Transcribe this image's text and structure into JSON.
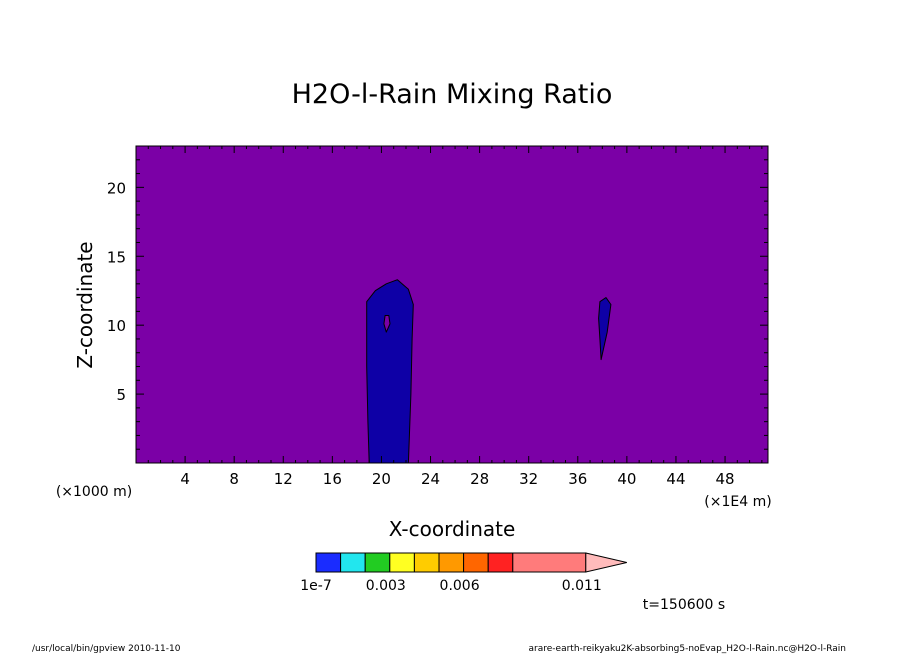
{
  "chart_data": {
    "type": "heatmap",
    "title": "H2O-l-Rain Mixing Ratio",
    "xlabel": "X-coordinate",
    "ylabel": "Z-coordinate",
    "x_unit": "(×1E4 m)",
    "y_unit": "(×1000 m)",
    "xlim": [
      0,
      51.5
    ],
    "ylim": [
      0,
      23
    ],
    "x_ticks": [
      4,
      8,
      12,
      16,
      20,
      24,
      28,
      32,
      36,
      40,
      44,
      48
    ],
    "y_ticks": [
      5,
      10,
      15,
      20
    ],
    "background_level_color": "#7b00a6",
    "regions": [
      {
        "name": "plume-1",
        "color": "#0e00a6",
        "outline": [
          [
            19.0,
            0
          ],
          [
            22.2,
            0
          ],
          [
            22.4,
            5
          ],
          [
            22.5,
            9
          ],
          [
            22.6,
            11.5
          ],
          [
            22.2,
            12.6
          ],
          [
            21.3,
            13.3
          ],
          [
            20.4,
            13.0
          ],
          [
            19.5,
            12.5
          ],
          [
            18.8,
            11.7
          ],
          [
            18.8,
            7
          ],
          [
            18.9,
            3
          ]
        ]
      },
      {
        "name": "plume-1-core",
        "color": "#7b00a6",
        "outline": [
          [
            20.4,
            9.5
          ],
          [
            20.7,
            10.1
          ],
          [
            20.6,
            10.7
          ],
          [
            20.3,
            10.7
          ],
          [
            20.2,
            10.1
          ]
        ]
      },
      {
        "name": "plume-2",
        "color": "#0e00a6",
        "outline": [
          [
            37.9,
            7.5
          ],
          [
            38.4,
            9.5
          ],
          [
            38.7,
            11.5
          ],
          [
            38.3,
            12.0
          ],
          [
            37.8,
            11.7
          ],
          [
            37.7,
            10.5
          ],
          [
            37.8,
            9.0
          ]
        ]
      }
    ],
    "colorbar": {
      "colors": [
        "#1a2cff",
        "#22e6ee",
        "#22cc22",
        "#ffff22",
        "#ffcc00",
        "#ff9900",
        "#ff6600",
        "#ff2222",
        "#ff7b7b",
        "#ffbbbb"
      ],
      "labels": [
        "1e-7",
        "0.003",
        "0.006",
        "0.011"
      ]
    },
    "time_label": "t=150600 s"
  },
  "footer": {
    "left": "/usr/local/bin/gpview  2010-11-10",
    "right": "arare-earth-reikyaku2K-absorbing5-noEvap_H2O-l-Rain.nc@H2O-l-Rain"
  }
}
